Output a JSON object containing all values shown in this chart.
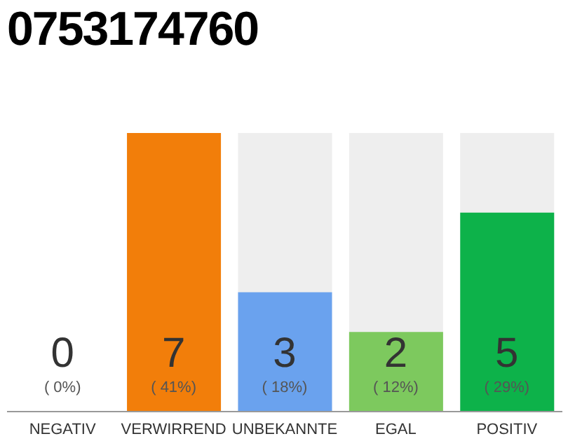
{
  "chart_data": {
    "type": "bar",
    "title": "0753174760",
    "categories": [
      "NEGATIV",
      "VERWIRREND",
      "UNBEKANNTE",
      "EGAL",
      "POSITIV"
    ],
    "values": [
      0,
      7,
      3,
      2,
      5
    ],
    "colors": [
      "#eeeeee",
      "#f27e0a",
      "#6aa2ee",
      "#7dc95e",
      "#0db24a"
    ],
    "data_labels": true,
    "annotations": [
      "( 0%)",
      "( 41%)",
      "( 18%)",
      "( 12%)",
      "( 29%)"
    ]
  }
}
